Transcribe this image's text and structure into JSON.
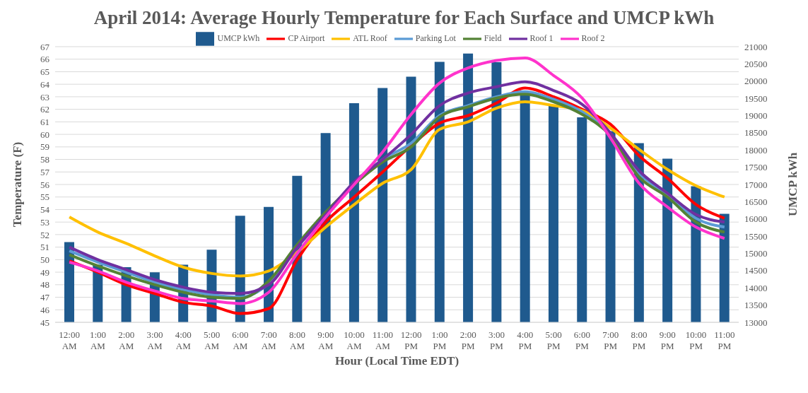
{
  "chart_data": {
    "type": "bar",
    "title": "April 2014: Average Hourly Temperature for Each Surface and UMCP kWh",
    "xlabel": "Hour (Local Time EDT)",
    "ylabel": "Temperature (F)",
    "y2label": "UMCP kWh",
    "categories": [
      "12:00 AM",
      "1:00 AM",
      "2:00 AM",
      "3:00 AM",
      "4:00 AM",
      "5:00 AM",
      "6:00 AM",
      "7:00 AM",
      "8:00 AM",
      "9:00 AM",
      "10:00 AM",
      "11:00 AM",
      "12:00 PM",
      "1:00 PM",
      "2:00 PM",
      "3:00 PM",
      "4:00 PM",
      "5:00 PM",
      "6:00 PM",
      "7:00 PM",
      "8:00 PM",
      "9:00 PM",
      "10:00 PM",
      "11:00 PM"
    ],
    "series": [
      {
        "name": "UMCP kWh",
        "axis": "y2",
        "color": "#1f5a8e",
        "values": [
          15330,
          14670,
          14600,
          14450,
          14670,
          15110,
          16090,
          16350,
          17250,
          18490,
          19360,
          19800,
          20130,
          20560,
          20800,
          20550,
          19650,
          19300,
          18950,
          18550,
          18200,
          17750,
          16950,
          16150
        ]
      },
      {
        "name": "CP Airport",
        "type": "line",
        "color": "#ff0000",
        "values": [
          49.9,
          49.0,
          48.0,
          47.3,
          46.6,
          46.3,
          45.7,
          46.1,
          50.0,
          53.0,
          55.0,
          57.0,
          59.1,
          60.9,
          61.5,
          62.5,
          63.7,
          63.0,
          62.0,
          60.8,
          58.3,
          56.5,
          54.4,
          53.3
        ]
      },
      {
        "name": "ATL Roof",
        "type": "line",
        "color": "#ffc000",
        "values": [
          53.4,
          52.2,
          51.3,
          50.3,
          49.4,
          48.9,
          48.7,
          49.1,
          50.6,
          52.6,
          54.4,
          56.1,
          57.2,
          60.4,
          61.0,
          62.1,
          62.6,
          62.3,
          61.9,
          60.5,
          58.8,
          57.2,
          55.9,
          55.0
        ]
      },
      {
        "name": "Parking Lot",
        "type": "line",
        "color": "#5b9bd5",
        "values": [
          50.7,
          49.8,
          49.0,
          48.2,
          47.6,
          47.2,
          47.0,
          48.1,
          51.0,
          53.6,
          56.1,
          58.0,
          59.3,
          61.5,
          62.3,
          63.0,
          63.4,
          62.8,
          61.8,
          60.0,
          56.9,
          55.2,
          53.3,
          52.6
        ]
      },
      {
        "name": "Field",
        "type": "line",
        "color": "#548235",
        "values": [
          50.4,
          49.5,
          48.7,
          48.0,
          47.4,
          47.0,
          46.9,
          48.3,
          51.2,
          53.8,
          56.0,
          57.8,
          59.0,
          61.4,
          62.2,
          62.9,
          63.2,
          62.6,
          61.6,
          59.9,
          56.6,
          55.0,
          53.0,
          52.2
        ]
      },
      {
        "name": "Roof 1",
        "type": "line",
        "color": "#7030a0",
        "values": [
          51.0,
          50.0,
          49.2,
          48.4,
          47.8,
          47.4,
          47.3,
          48.0,
          51.0,
          53.6,
          56.2,
          58.0,
          60.0,
          62.3,
          63.3,
          63.8,
          64.2,
          63.5,
          62.4,
          60.1,
          57.1,
          55.3,
          53.6,
          53.0
        ]
      },
      {
        "name": "Roof 2",
        "type": "line",
        "color": "#ff33cc",
        "values": [
          49.8,
          49.1,
          48.2,
          47.5,
          46.9,
          46.7,
          46.5,
          47.4,
          50.5,
          53.4,
          56.0,
          58.6,
          61.6,
          64.1,
          65.3,
          65.9,
          66.1,
          64.7,
          62.9,
          59.7,
          56.1,
          54.2,
          52.6,
          51.7
        ]
      }
    ],
    "ylim": [
      45,
      67
    ],
    "yticks": [
      45,
      46,
      47,
      48,
      49,
      50,
      51,
      52,
      53,
      54,
      55,
      56,
      57,
      58,
      59,
      60,
      61,
      62,
      63,
      64,
      65,
      66,
      67
    ],
    "y2lim": [
      13000,
      21000
    ],
    "y2ticks": [
      13000,
      13500,
      14000,
      14500,
      15000,
      15500,
      16000,
      16500,
      17000,
      17500,
      18000,
      18500,
      19000,
      19500,
      20000,
      20500,
      21000
    ],
    "grid": "y",
    "legend": "top",
    "marker": "none",
    "line_style": "solid"
  }
}
